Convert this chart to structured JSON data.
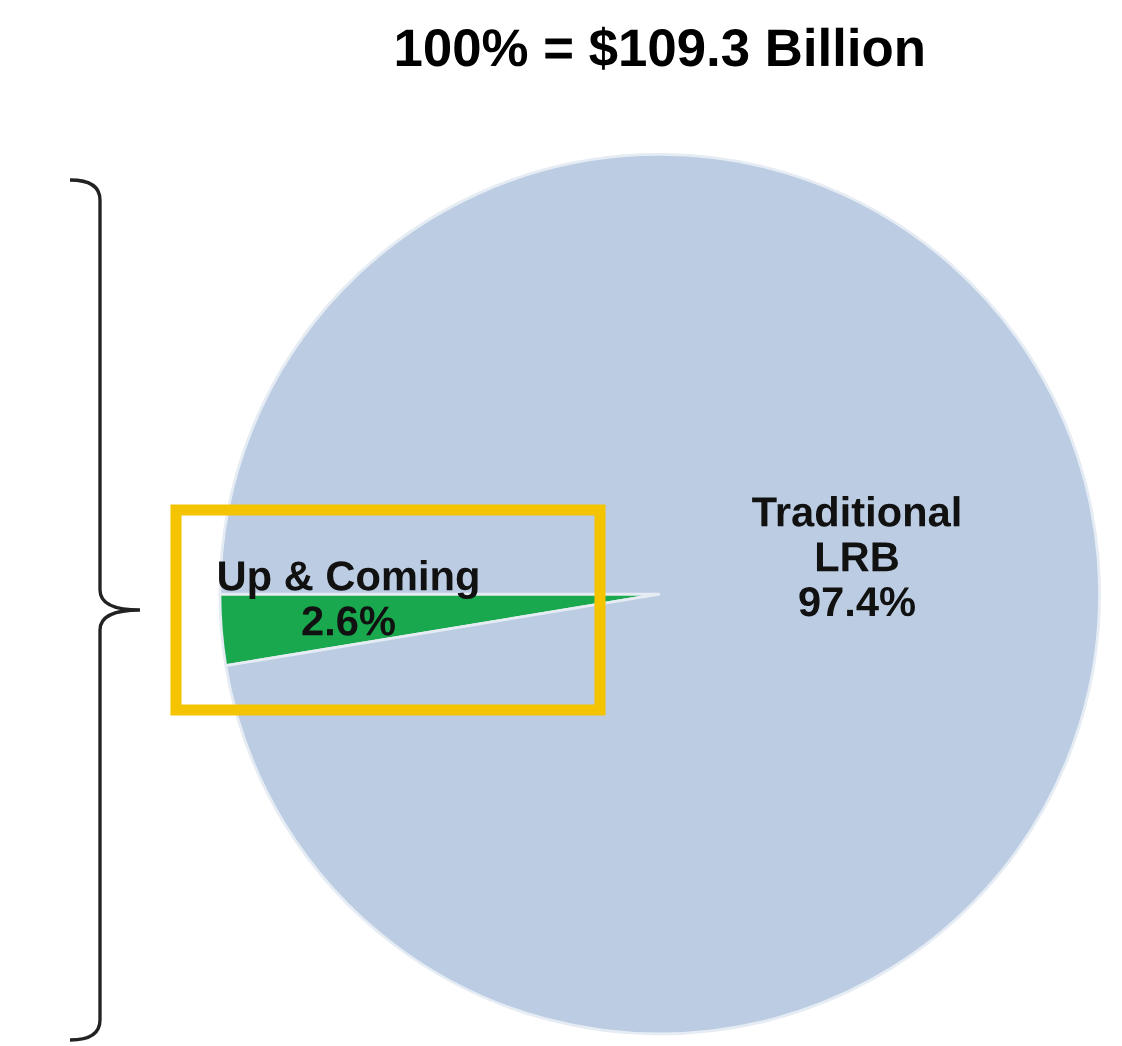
{
  "chart_data": {
    "type": "pie",
    "title": "100% = $109.3 Billion",
    "categories": [
      "Up & Coming",
      "Traditional\nLRB"
    ],
    "value_labels": [
      "2.6%",
      "97.4%"
    ],
    "values": [
      2.6,
      97.4
    ],
    "colors": [
      "#1aa84f",
      "#bccde3"
    ]
  }
}
